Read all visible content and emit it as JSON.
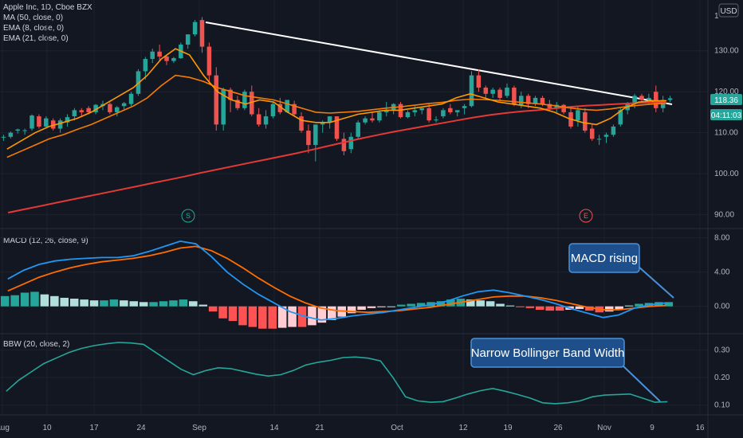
{
  "header": {
    "symbol": "Apple Inc, 1D, Cboe BZX",
    "indicators": [
      "MA (50, close, 0)",
      "EMA (8, close, 0)",
      "EMA (21, close, 0)"
    ],
    "currency": "USD"
  },
  "price_tags": {
    "last": "118.36",
    "countdown": "04:11:03"
  },
  "panes": {
    "macd_label": "MACD (12, 26, close, 9)",
    "bbw_label": "BBW (20, close, 2)"
  },
  "annotations": {
    "macd_note": "MACD rising",
    "bbw_note": "Narrow Bollinger Band Width",
    "event_s": "S",
    "event_e": "E"
  },
  "colors": {
    "up": "#26a69a",
    "down": "#ef5350",
    "ma50": "#e53935",
    "ema8": "#ff9800",
    "ema21": "#f57c00",
    "macd": "#2196f3",
    "signal": "#ff6d00",
    "bbw": "#26a69a",
    "callout_bg": "#1e4f8a",
    "callout_border": "#4a90d9"
  },
  "chart_data": {
    "type": "candlestick",
    "x_ticks": [
      "Aug",
      "10",
      "17",
      "24",
      "Sep",
      "14",
      "21",
      "Oct",
      "12",
      "19",
      "26",
      "Nov",
      "9",
      "16"
    ],
    "price_axis": {
      "ticks": [
        1,
        130,
        120,
        110,
        100,
        90
      ],
      "tick_labels": [
        "1",
        "130.00",
        "120.00",
        "110.00",
        "100.00",
        "90.00"
      ],
      "ylim": [
        87,
        142
      ]
    },
    "candles": [
      [
        109,
        109.5,
        108,
        109
      ],
      [
        109,
        110.3,
        108.6,
        110
      ],
      [
        110.5,
        111,
        109.8,
        110.8
      ],
      [
        110.4,
        111,
        109.5,
        110.6
      ],
      [
        111,
        114.5,
        110.5,
        114.2
      ],
      [
        114,
        114.5,
        111,
        111.5
      ],
      [
        111.5,
        114,
        111,
        113.5
      ],
      [
        113,
        113.5,
        110.5,
        111
      ],
      [
        111,
        113.5,
        110,
        113
      ],
      [
        112.5,
        114.5,
        111.5,
        113.8
      ],
      [
        114,
        116,
        113,
        115.5
      ],
      [
        115.5,
        116,
        114,
        115
      ],
      [
        116,
        116.5,
        114.5,
        115
      ],
      [
        115,
        117,
        114.5,
        116.8
      ],
      [
        116.5,
        117.8,
        115.5,
        117
      ],
      [
        117,
        117.4,
        114.5,
        115
      ],
      [
        115,
        116.5,
        114,
        116.2
      ],
      [
        116.5,
        117.5,
        115.5,
        117.2
      ],
      [
        117,
        120,
        116.5,
        119.5
      ],
      [
        119.5,
        125.5,
        119,
        125
      ],
      [
        125,
        128.5,
        123,
        128
      ],
      [
        128,
        130.5,
        127,
        129.8
      ],
      [
        129.8,
        131.5,
        127.5,
        128.6
      ],
      [
        128.6,
        129,
        126.5,
        127.5
      ],
      [
        127.5,
        128.5,
        127,
        128.2
      ],
      [
        128.2,
        132,
        128,
        131.5
      ],
      [
        131.5,
        134,
        130.5,
        134
      ],
      [
        134,
        137.5,
        133.5,
        137
      ],
      [
        137.5,
        138.2,
        129.5,
        131
      ],
      [
        131,
        132,
        122,
        124
      ],
      [
        124,
        126,
        110.5,
        112
      ],
      [
        112,
        121,
        110.5,
        120.5
      ],
      [
        120.5,
        121,
        115,
        118
      ],
      [
        118,
        119,
        115.5,
        116
      ],
      [
        116,
        120.5,
        115.5,
        120
      ],
      [
        120,
        121.5,
        114,
        114.5
      ],
      [
        114.5,
        116,
        111.5,
        112
      ],
      [
        112,
        115.5,
        111,
        114
      ],
      [
        114,
        117.5,
        113.5,
        117
      ],
      [
        117,
        118.5,
        114.5,
        115
      ],
      [
        115,
        118,
        114.8,
        118
      ],
      [
        117,
        117.8,
        114,
        114.5
      ],
      [
        114,
        115,
        110,
        110.5
      ],
      [
        110.5,
        112,
        105,
        107
      ],
      [
        107,
        112,
        103,
        112
      ],
      [
        112,
        113,
        110,
        112.5
      ],
      [
        112.5,
        114,
        111,
        114
      ],
      [
        114,
        114,
        108,
        108.5
      ],
      [
        108.5,
        110,
        104.5,
        105.5
      ],
      [
        106,
        110,
        105,
        109
      ],
      [
        109,
        113,
        108.5,
        112.5
      ],
      [
        112.5,
        114,
        112,
        113.5
      ],
      [
        113.5,
        115,
        112.5,
        113
      ],
      [
        113,
        115.5,
        112.5,
        115
      ],
      [
        115,
        117.5,
        114,
        115.5
      ],
      [
        115.5,
        117.2,
        114.5,
        117
      ],
      [
        117,
        117.5,
        113.5,
        113.8
      ],
      [
        113.8,
        115.5,
        113.5,
        115
      ],
      [
        115,
        116.5,
        114,
        115.5
      ],
      [
        115.5,
        116.2,
        114.5,
        116
      ],
      [
        116,
        117,
        112.5,
        113
      ],
      [
        113,
        114,
        112.5,
        113.2
      ],
      [
        114,
        116,
        113.5,
        115.5
      ],
      [
        116,
        117,
        114.5,
        115
      ],
      [
        115,
        115.5,
        114,
        115.5
      ],
      [
        116,
        117,
        114.5,
        116.5
      ],
      [
        116.5,
        125,
        116.2,
        124
      ],
      [
        124,
        125.5,
        120,
        121
      ],
      [
        121,
        121.5,
        118.5,
        119.5
      ],
      [
        119.5,
        121,
        118.5,
        120.5
      ],
      [
        120.5,
        121,
        118,
        118.5
      ],
      [
        119,
        122,
        118.5,
        121
      ],
      [
        121,
        121.5,
        116.5,
        116.8
      ],
      [
        116.8,
        120,
        116,
        119
      ],
      [
        119,
        119.5,
        116,
        117
      ],
      [
        117,
        119,
        116.5,
        118.5
      ],
      [
        118.5,
        119,
        116.5,
        117
      ],
      [
        117,
        118,
        115.5,
        116
      ],
      [
        116,
        117.5,
        115,
        116.8
      ],
      [
        116.8,
        117,
        114.5,
        115
      ],
      [
        115,
        116,
        111,
        111.5
      ],
      [
        113,
        116.5,
        111.5,
        115.5
      ],
      [
        115,
        116,
        110,
        110.5
      ],
      [
        111,
        112,
        108,
        108.5
      ],
      [
        108.5,
        109.5,
        107,
        108.5
      ],
      [
        109,
        110,
        107.5,
        109.5
      ],
      [
        109.5,
        112,
        109,
        111.5
      ],
      [
        112,
        116,
        111.5,
        115.5
      ],
      [
        115.5,
        117.5,
        114.5,
        117
      ],
      [
        117,
        119.5,
        116,
        119
      ],
      [
        119,
        119.5,
        117.5,
        118
      ],
      [
        118,
        119.5,
        117,
        118.5
      ],
      [
        120,
        121.5,
        115,
        116
      ],
      [
        116,
        119,
        115,
        118
      ],
      [
        118,
        119,
        117.5,
        118.4
      ]
    ],
    "ma50": [
      90.5,
      91.3,
      92.1,
      92.9,
      93.7,
      94.5,
      95.3,
      96.1,
      96.9,
      97.7,
      98.5,
      99.3,
      100.2,
      101,
      101.8,
      102.6,
      103.4,
      104.2,
      105,
      105.9,
      106.8,
      107.7,
      108.6,
      109.4,
      110.2,
      110.9,
      111.6,
      112.3,
      113,
      113.7,
      114.3,
      114.8,
      115.2,
      115.5,
      115.9,
      116.3,
      116.6,
      116.8,
      117,
      117.2,
      117.4,
      117.5
    ],
    "ema8": [
      106,
      108,
      110,
      111.5,
      112.5,
      113.5,
      115,
      117,
      119,
      121,
      124,
      128,
      130.5,
      129,
      124,
      120,
      118,
      117,
      118,
      117.5,
      115,
      113,
      112.5,
      112.5,
      113.5,
      114.5,
      115,
      115.5,
      115.5,
      116,
      116.5,
      117,
      118.5,
      119.5,
      118.5,
      117.5,
      117,
      116.5,
      116,
      115,
      113.5,
      112.5,
      112,
      113.5,
      116,
      117.5,
      117.8,
      117.8
    ],
    "ema21": [
      104,
      105.5,
      107,
      108.5,
      109.5,
      110.8,
      112,
      113.5,
      115,
      116.5,
      118.5,
      121.5,
      124,
      123.5,
      122.5,
      121,
      120,
      119,
      118.5,
      118,
      117,
      116,
      115,
      114.8,
      115,
      115.2,
      115.6,
      116,
      116.3,
      116.7,
      117.1,
      117.4,
      117.9,
      118.2,
      118.1,
      117.9,
      117.6,
      117.3,
      117,
      116.6,
      116.1,
      115.7,
      115.5,
      115.8,
      116.3,
      116.7,
      117,
      117.2
    ],
    "macd": {
      "ticks": [
        8.0,
        4.0,
        0.0
      ],
      "tick_labels": [
        "8.00",
        "4.00",
        "0.00"
      ],
      "ylim": [
        -3,
        8.8
      ],
      "macd": [
        3.2,
        4.2,
        4.9,
        5.3,
        5.5,
        5.6,
        5.7,
        5.7,
        5.9,
        6.4,
        7.0,
        7.6,
        7.3,
        5.8,
        4.0,
        2.6,
        1.4,
        0.4,
        -0.6,
        -1.2,
        -1.6,
        -1.4,
        -1.1,
        -0.9,
        -0.7,
        -0.4,
        -0.1,
        0.2,
        0.6,
        1.2,
        1.7,
        1.9,
        1.6,
        1.2,
        0.8,
        0.3,
        -0.3,
        -0.8,
        -1.3,
        -1.0,
        -0.2,
        0.2,
        0.4
      ],
      "signal": [
        1.8,
        2.6,
        3.4,
        4.0,
        4.5,
        4.9,
        5.2,
        5.4,
        5.6,
        5.9,
        6.3,
        6.8,
        7.0,
        6.5,
        5.6,
        4.5,
        3.3,
        2.2,
        1.2,
        0.4,
        -0.2,
        -0.5,
        -0.6,
        -0.7,
        -0.6,
        -0.5,
        -0.3,
        -0.1,
        0.2,
        0.5,
        0.8,
        1.1,
        1.2,
        1.2,
        1.0,
        0.7,
        0.3,
        -0.1,
        -0.4,
        -0.4,
        -0.2,
        0.0,
        0.1
      ],
      "histogram": [
        1.2,
        1.3,
        1.6,
        1.7,
        1.4,
        1.2,
        1.0,
        0.9,
        0.8,
        0.7,
        0.7,
        0.8,
        0.7,
        0.6,
        0.5,
        0.5,
        0.6,
        0.7,
        0.8,
        0.6,
        0.2,
        -0.6,
        -1.4,
        -1.7,
        -2.2,
        -2.4,
        -2.6,
        -2.6,
        -2.5,
        -2.4,
        -2.4,
        -2.2,
        -1.9,
        -1.6,
        -1.2,
        -0.8,
        -0.4,
        -0.2,
        -0.1,
        0.0,
        0.2,
        0.3,
        0.4,
        0.5,
        0.6,
        0.8,
        0.9,
        0.8,
        0.7,
        0.6,
        0.3,
        0.1,
        -0.1,
        -0.2,
        -0.4,
        -0.5,
        -0.5,
        -0.4,
        -0.3,
        -0.5,
        -0.7,
        -0.6,
        -0.4,
        0.1,
        0.3,
        0.4,
        0.5,
        0.5
      ]
    },
    "bbw": {
      "ticks": [
        0.3,
        0.2,
        0.1
      ],
      "tick_labels": [
        "0.30",
        "0.20",
        "0.10"
      ],
      "ylim": [
        0.07,
        0.35
      ],
      "values": [
        0.15,
        0.19,
        0.22,
        0.25,
        0.27,
        0.29,
        0.305,
        0.315,
        0.322,
        0.327,
        0.325,
        0.32,
        0.29,
        0.26,
        0.23,
        0.21,
        0.225,
        0.235,
        0.232,
        0.222,
        0.212,
        0.205,
        0.21,
        0.225,
        0.245,
        0.255,
        0.262,
        0.272,
        0.274,
        0.27,
        0.26,
        0.2,
        0.13,
        0.115,
        0.11,
        0.112,
        0.125,
        0.14,
        0.152,
        0.16,
        0.15,
        0.138,
        0.125,
        0.108,
        0.105,
        0.108,
        0.115,
        0.13,
        0.136,
        0.138,
        0.14,
        0.125,
        0.11,
        0.112
      ]
    }
  }
}
